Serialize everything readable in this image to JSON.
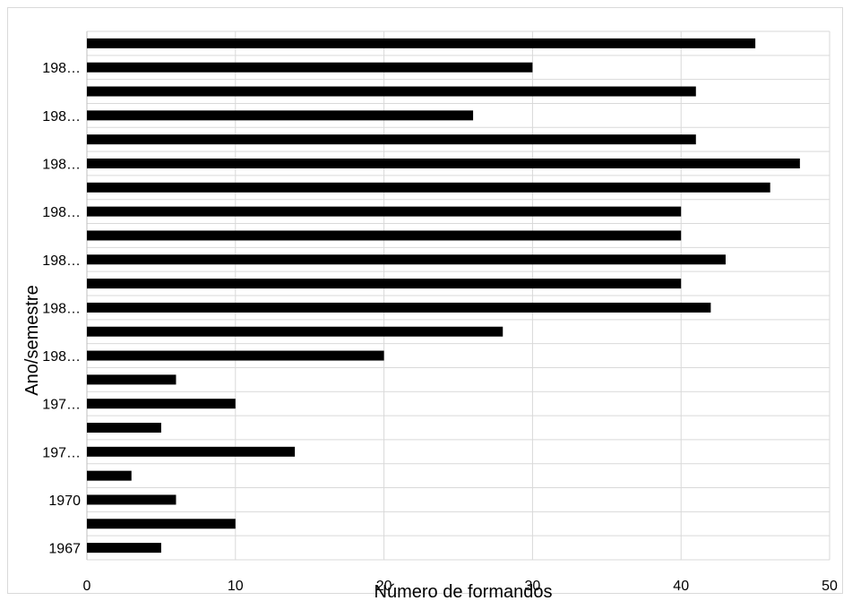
{
  "chart_data": {
    "type": "bar",
    "orientation": "horizontal",
    "xlabel": "Número de formandos",
    "ylabel": "Ano/semestre",
    "xlim": [
      0,
      50
    ],
    "x_ticks": [
      "0",
      "10",
      "20",
      "30",
      "40",
      "50"
    ],
    "y_tick_labels": [
      "1967",
      "",
      "1970",
      "",
      "197…",
      "",
      "197…",
      "",
      "198…",
      "",
      "198…",
      "",
      "198…",
      "",
      "198…",
      "",
      "198…",
      "",
      "198…",
      "",
      "198…",
      ""
    ],
    "values": [
      5,
      10,
      6,
      3,
      14,
      5,
      10,
      6,
      20,
      28,
      42,
      40,
      43,
      40,
      40,
      46,
      48,
      41,
      26,
      41,
      30,
      45
    ],
    "grid": true,
    "colors": {
      "bar": "#000000",
      "grid": "#d9d9d9",
      "axis": "#bfbfbf"
    }
  }
}
